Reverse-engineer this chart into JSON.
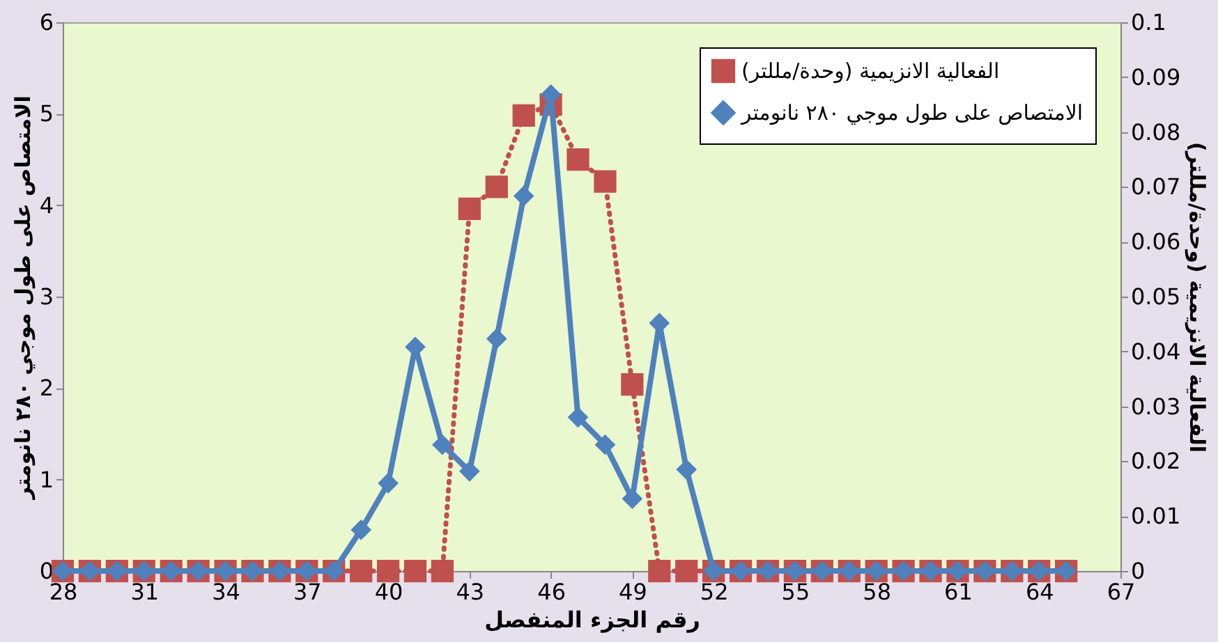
{
  "chart_data": {
    "type": "line",
    "xlabel": "رقم الجزء المنفصل",
    "ylabel": "الامتصاص على طول موجي ٢٨٠ نانومتر",
    "y2label": "الفعالية الانزيمية (وحدة/مللتر)",
    "x": [
      28,
      29,
      30,
      31,
      32,
      33,
      34,
      35,
      36,
      37,
      38,
      39,
      40,
      41,
      42,
      43,
      44,
      45,
      46,
      47,
      48,
      49,
      50,
      51,
      52,
      53,
      54,
      55,
      56,
      57,
      58,
      59,
      60,
      61,
      62,
      63,
      64,
      65
    ],
    "series": [
      {
        "name": "الفعالية الانزيمية (وحدة/مللتر)",
        "color": "#c0504d",
        "axis": "y2",
        "type": "line",
        "marker": "square",
        "line_style": "dotted",
        "values": [
          0,
          0,
          0,
          0,
          0,
          0,
          0,
          0,
          0,
          0,
          0,
          0,
          0,
          0,
          0,
          0.066,
          0.07,
          0.083,
          0.085,
          0.075,
          0.071,
          0.034,
          0,
          0,
          0,
          0,
          0,
          0,
          0,
          0,
          0,
          0,
          0,
          0,
          0,
          0,
          0,
          0
        ]
      },
      {
        "name": "الامتصاص على طول موجي ٢٨٠ نانومتر",
        "color": "#4f81bd",
        "axis": "y",
        "type": "line",
        "marker": "diamond",
        "line_style": "solid",
        "values": [
          0,
          0,
          0,
          0,
          0,
          0,
          0,
          0,
          0,
          0,
          0,
          0.45,
          0.96,
          2.45,
          1.38,
          1.09,
          2.54,
          4.1,
          5.21,
          1.68,
          1.38,
          0.79,
          2.71,
          1.11,
          0,
          0,
          0,
          0,
          0,
          0,
          0,
          0,
          0,
          0,
          0,
          0,
          0,
          0
        ]
      }
    ],
    "xlim": [
      28,
      67
    ],
    "xticks": [
      28,
      31,
      34,
      37,
      40,
      43,
      46,
      49,
      52,
      55,
      58,
      61,
      64,
      67
    ],
    "ylim": [
      0,
      6
    ],
    "yticks": [
      0,
      1,
      2,
      3,
      4,
      5,
      6
    ],
    "y2lim": [
      0,
      0.1
    ],
    "y2ticks": [
      0,
      0.01,
      0.02,
      0.03,
      0.04,
      0.05,
      0.06,
      0.07,
      0.08,
      0.09,
      0.1
    ],
    "legend": "top right",
    "grid": false
  }
}
